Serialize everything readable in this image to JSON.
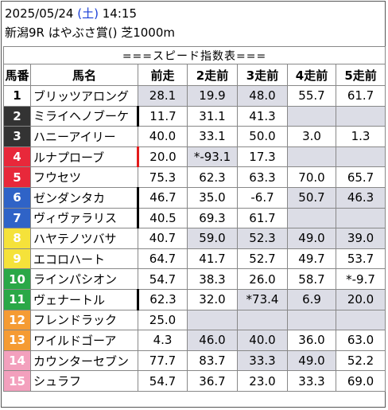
{
  "header": {
    "date": "2025/05/24",
    "weekday_open": "(",
    "weekday": "土",
    "weekday_close": ")",
    "time": "14:15",
    "race": "新潟9R はやぶさ賞() 芝1000m"
  },
  "table": {
    "title": "===スピード指数表===",
    "columns": [
      "馬番",
      "馬名",
      "前走",
      "2走前",
      "3走前",
      "4走前",
      "5走前"
    ],
    "rows": [
      {
        "num": "1",
        "name": "ブリッツアロング",
        "vals": [
          "28.1",
          "19.9",
          "48.0",
          "55.7",
          "61.7"
        ],
        "shade": [
          true,
          true,
          true,
          false,
          false
        ],
        "bar": ""
      },
      {
        "num": "2",
        "name": "ミライヘノブーケ",
        "vals": [
          "11.7",
          "31.1",
          "41.3",
          "",
          ""
        ],
        "shade": [
          false,
          false,
          false,
          true,
          true
        ],
        "bar": "black"
      },
      {
        "num": "3",
        "name": "ハニーアイリー",
        "vals": [
          "40.0",
          "33.1",
          "50.0",
          "3.0",
          "1.3"
        ],
        "shade": [
          false,
          false,
          false,
          false,
          false
        ],
        "bar": ""
      },
      {
        "num": "4",
        "name": "ルナプローブ",
        "vals": [
          "20.0",
          "*-93.1",
          "17.3",
          "",
          ""
        ],
        "shade": [
          false,
          true,
          false,
          true,
          true
        ],
        "bar": "red"
      },
      {
        "num": "5",
        "name": "フウセツ",
        "vals": [
          "75.3",
          "62.3",
          "63.3",
          "70.0",
          "65.7"
        ],
        "shade": [
          false,
          false,
          false,
          false,
          false
        ],
        "bar": ""
      },
      {
        "num": "6",
        "name": "ゼンダンタカ",
        "vals": [
          "46.7",
          "35.0",
          "-6.7",
          "50.7",
          "46.3"
        ],
        "shade": [
          false,
          false,
          false,
          true,
          true
        ],
        "bar": "black"
      },
      {
        "num": "7",
        "name": "ヴィヴァラリス",
        "vals": [
          "40.5",
          "69.3",
          "61.7",
          "",
          ""
        ],
        "shade": [
          false,
          false,
          false,
          true,
          true
        ],
        "bar": "black"
      },
      {
        "num": "8",
        "name": "ハヤテノツバサ",
        "vals": [
          "40.7",
          "59.0",
          "52.3",
          "49.0",
          "39.0"
        ],
        "shade": [
          false,
          true,
          true,
          true,
          true
        ],
        "bar": ""
      },
      {
        "num": "9",
        "name": "エコロハート",
        "vals": [
          "64.7",
          "41.7",
          "52.7",
          "49.7",
          "53.7"
        ],
        "shade": [
          false,
          false,
          false,
          false,
          false
        ],
        "bar": ""
      },
      {
        "num": "10",
        "name": "ラインパシオン",
        "vals": [
          "54.7",
          "38.3",
          "26.0",
          "58.7",
          "*-9.7"
        ],
        "shade": [
          false,
          false,
          false,
          false,
          false
        ],
        "bar": ""
      },
      {
        "num": "11",
        "name": "ヴェナートル",
        "vals": [
          "62.3",
          "32.0",
          "*73.4",
          "6.9",
          "20.0"
        ],
        "shade": [
          false,
          false,
          true,
          true,
          true
        ],
        "bar": "black"
      },
      {
        "num": "12",
        "name": "フレンドラック",
        "vals": [
          "25.0",
          "",
          "",
          "",
          ""
        ],
        "shade": [
          false,
          true,
          true,
          true,
          true
        ],
        "bar": ""
      },
      {
        "num": "13",
        "name": "ワイルドゴーア",
        "vals": [
          "4.3",
          "46.0",
          "40.0",
          "36.0",
          "63.0"
        ],
        "shade": [
          false,
          true,
          true,
          false,
          false
        ],
        "bar": ""
      },
      {
        "num": "14",
        "name": "カウンターセブン",
        "vals": [
          "77.7",
          "83.7",
          "33.3",
          "49.0",
          "52.2"
        ],
        "shade": [
          false,
          false,
          true,
          true,
          false
        ],
        "bar": ""
      },
      {
        "num": "15",
        "name": "シュラフ",
        "vals": [
          "54.7",
          "36.7",
          "23.0",
          "33.3",
          "69.0"
        ],
        "shade": [
          false,
          false,
          false,
          false,
          false
        ],
        "bar": ""
      }
    ]
  },
  "colors": {
    "frame_colors": [
      "#ffffff",
      "#333333",
      "#e8283a",
      "#2f63c7",
      "#f5e23a",
      "#2aa847",
      "#f59b33",
      "#f3a0bd"
    ],
    "weekday_color": "#1a3fd6",
    "shade": "#dcdde6",
    "bar_red": "#e31b1b",
    "bar_black": "#000000"
  }
}
